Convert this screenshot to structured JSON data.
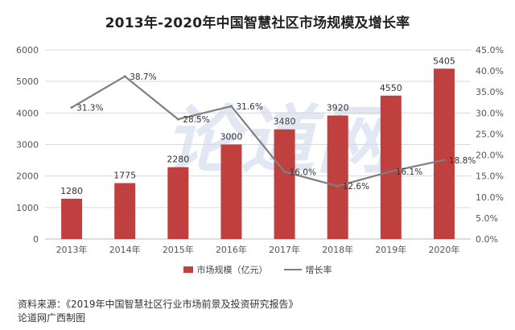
{
  "chart_data": {
    "type": "bar+line",
    "title": "2013年-2020年中国智慧社区市场规模及增长率",
    "categories": [
      "2013年",
      "2014年",
      "2015年",
      "2016年",
      "2017年",
      "2018年",
      "2019年",
      "2020年"
    ],
    "series": [
      {
        "name": "市场规模（亿元）",
        "type": "bar",
        "axis": "left",
        "color": "#c0403f",
        "values": [
          1280,
          1775,
          2280,
          3000,
          3480,
          3920,
          4550,
          5405
        ],
        "labels": [
          "1280",
          "1775",
          "2280",
          "3000",
          "3480",
          "3920",
          "4550",
          "5405"
        ]
      },
      {
        "name": "增长率",
        "type": "line",
        "axis": "right",
        "color": "#7f7f7f",
        "values": [
          31.3,
          38.7,
          28.5,
          31.6,
          16.0,
          12.6,
          16.1,
          18.8
        ],
        "labels": [
          "31.3%",
          "38.7%",
          "28.5%",
          "31.6%",
          "16.0%",
          "12.6%",
          "16.1%",
          "18.8%"
        ]
      }
    ],
    "y_left": {
      "min": 0,
      "max": 6000,
      "ticks": [
        0,
        1000,
        2000,
        3000,
        4000,
        5000,
        6000
      ],
      "tick_labels": [
        "0",
        "1000",
        "2000",
        "3000",
        "4000",
        "5000",
        "6000"
      ]
    },
    "y_right": {
      "min": 0,
      "max": 45,
      "ticks": [
        0,
        5,
        10,
        15,
        20,
        25,
        30,
        35,
        40,
        45
      ],
      "tick_labels": [
        "0.0%",
        "5.0%",
        "10.0%",
        "15.0%",
        "20.0%",
        "25.0%",
        "30.0%",
        "35.0%",
        "40.0%",
        "45.0%"
      ]
    },
    "grid": true,
    "legend_position": "bottom"
  },
  "legend": {
    "bar_label": "市场规模（亿元）",
    "line_label": "增长率"
  },
  "watermark": "论道网",
  "source": {
    "line1": "资料来源：《2019年中国智慧社区行业市场前景及投资研究报告》",
    "line2": "论道网广西制图"
  }
}
